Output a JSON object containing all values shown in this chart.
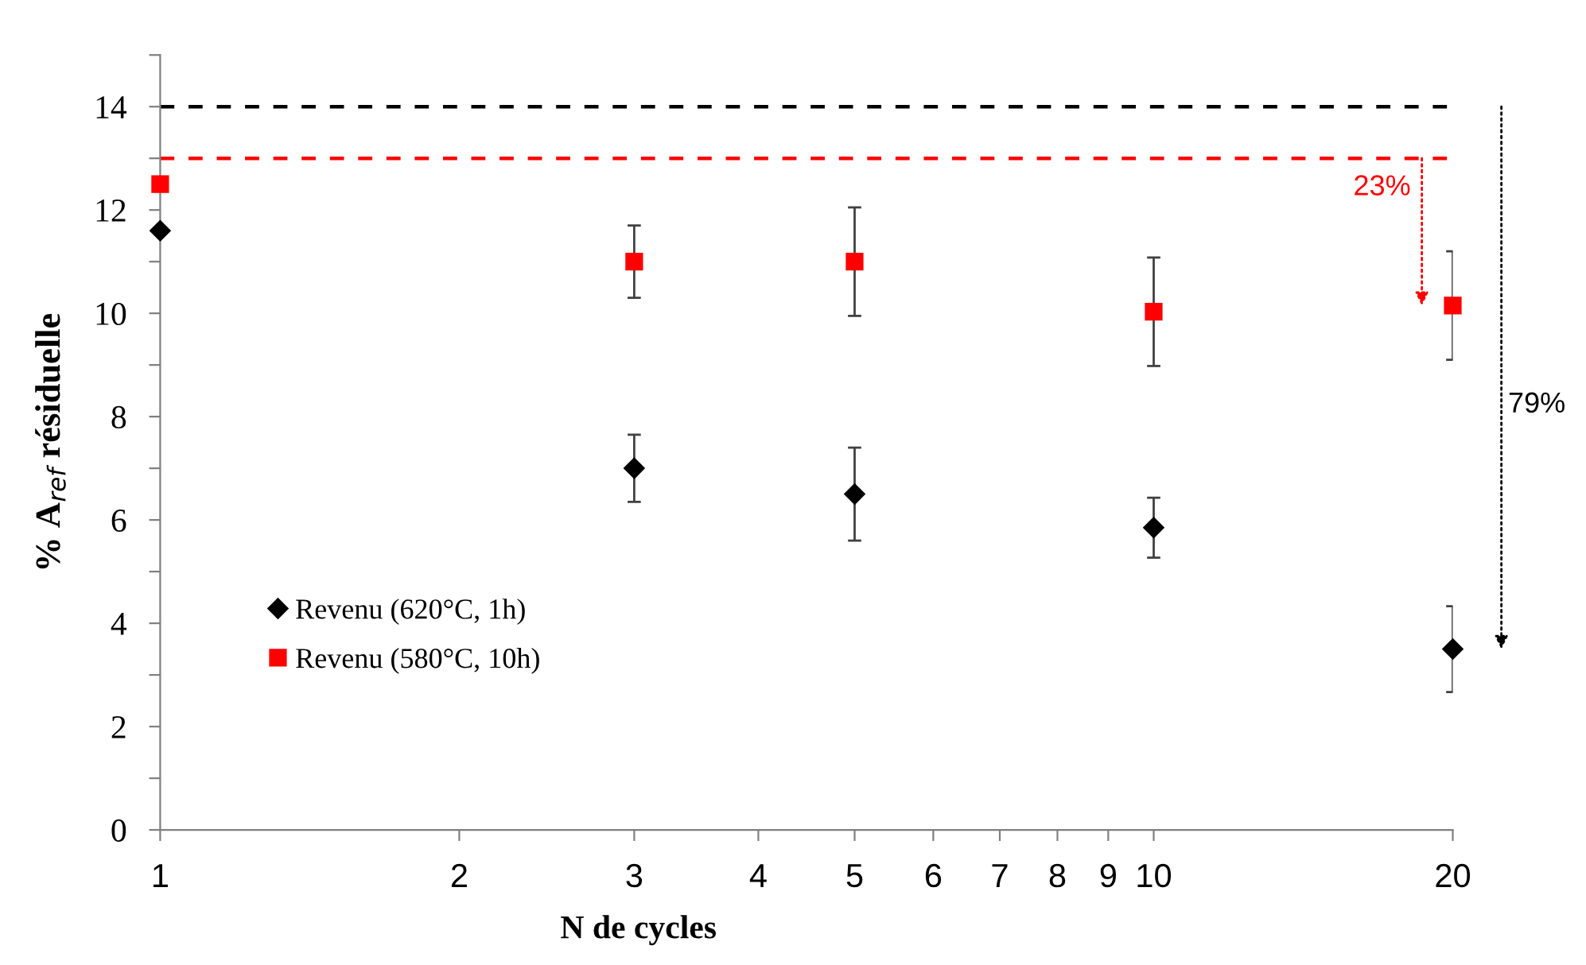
{
  "chart_data": {
    "type": "scatter",
    "xlabel": "N de cycles",
    "ylabel": "% A$_{ref}$ résiduelle",
    "log": "x",
    "xlim": [
      1,
      20
    ],
    "xticks": [
      1,
      2,
      3,
      4,
      5,
      6,
      7,
      8,
      9,
      10,
      20
    ],
    "ylim": [
      0,
      15
    ],
    "yticks": [
      0,
      {
        "value": 1,
        "label": null
      },
      2,
      {
        "value": 3,
        "label": null
      },
      4,
      {
        "value": 5,
        "label": null
      },
      6,
      {
        "value": 7,
        "label": null
      },
      8,
      {
        "value": 9,
        "label": null
      },
      10,
      {
        "value": 11,
        "label": null
      },
      12,
      {
        "value": 13,
        "label": null
      },
      14,
      {
        "value": 15,
        "label": null
      }
    ],
    "x": [
      1,
      3,
      5,
      10,
      20
    ],
    "series": [
      {
        "name": "Revenu (620°C, 1h)",
        "color": "#000000",
        "marker": "diamond",
        "values": [
          11.6,
          7.0,
          6.5,
          5.85,
          3.5
        ],
        "errors": [
          null,
          0.65,
          0.9,
          0.58,
          0.83
        ]
      },
      {
        "name": "Revenu (580°C, 10h)",
        "color": "#ff0000",
        "marker": "square",
        "values": [
          12.5,
          11.0,
          11.0,
          10.03,
          10.15
        ],
        "errors": [
          null,
          0.7,
          1.05,
          1.05,
          1.05
        ]
      }
    ],
    "ref_lines": [
      {
        "axis": "y",
        "value": 14,
        "color": "#000000",
        "line_style": "dashed"
      },
      {
        "axis": "y",
        "value": 13,
        "color": "#ff0000",
        "line_style": "dashed"
      }
    ],
    "annotations": [
      "79%",
      "23%"
    ],
    "legend": "left",
    "grid": false
  }
}
